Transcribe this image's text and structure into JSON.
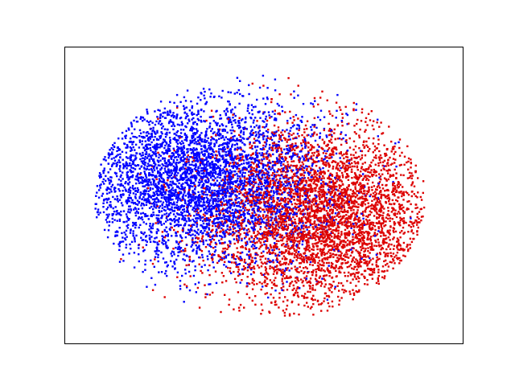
{
  "chart_data": {
    "type": "scatter",
    "title": "",
    "xlabel": "",
    "ylabel": "",
    "xticks": [],
    "yticks": [],
    "grid": false,
    "legend": "none",
    "xlim": [
      -1.0,
      1.0
    ],
    "ylim": [
      -1.0,
      1.0
    ],
    "series": [
      {
        "color": "#0000ff",
        "point_count": 4200,
        "center": [
          -0.33,
          0.1
        ],
        "spread": [
          0.32,
          0.28
        ],
        "note_shape": "gaussian cluster, upper-left"
      },
      {
        "color": "#dd0000",
        "point_count": 4200,
        "center": [
          0.28,
          -0.14
        ],
        "spread": [
          0.3,
          0.3
        ],
        "note_shape": "gaussian cluster, lower-right"
      }
    ]
  },
  "colors": {
    "background": "#ffffff",
    "axes_frame": "#000000",
    "blue": "#0000ff",
    "red": "#dd0000"
  }
}
